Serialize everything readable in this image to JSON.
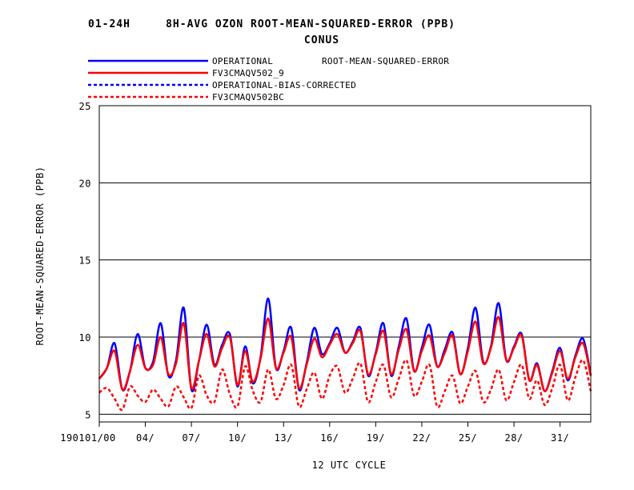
{
  "chart_data": {
    "type": "line",
    "title": "01-24H     8H-AVG OZON ROOT-MEAN-SQUARED-ERROR (PPB)",
    "subtitle": "CONUS",
    "legend_note": "ROOT-MEAN-SQUARED-ERROR",
    "xlabel": "12 UTC CYCLE",
    "ylabel": "ROOT-MEAN-SQUARED-ERROR (PPB)",
    "ylim": [
      4.5,
      25
    ],
    "yticks": [
      5,
      10,
      15,
      20,
      25
    ],
    "ytick_labels": [
      "5",
      "10",
      "15",
      "20",
      "25"
    ],
    "grid": "horizontal",
    "legend_position": "top-left",
    "xtick_labels": [
      "190101/00",
      "04/",
      "07/",
      "10/",
      "13/",
      "16/",
      "19/",
      "22/",
      "25/",
      "28/",
      "31/"
    ],
    "x_note": "x in days from 190101/00 (data roughly every 6 hours)",
    "x_start": 0,
    "x_end": 32,
    "series": [
      {
        "name": "OPERATIONAL",
        "color": "#0000ff",
        "style": "solid",
        "points": [
          [
            0.0,
            7.3
          ],
          [
            0.5,
            8.0
          ],
          [
            1.0,
            9.6
          ],
          [
            1.5,
            6.6
          ],
          [
            2.0,
            7.8
          ],
          [
            2.5,
            10.2
          ],
          [
            3.0,
            8.0
          ],
          [
            3.5,
            8.4
          ],
          [
            4.0,
            10.9
          ],
          [
            4.5,
            7.5
          ],
          [
            5.0,
            8.5
          ],
          [
            5.5,
            11.9
          ],
          [
            6.0,
            6.6
          ],
          [
            6.5,
            8.5
          ],
          [
            7.0,
            10.8
          ],
          [
            7.5,
            8.2
          ],
          [
            8.0,
            9.5
          ],
          [
            8.5,
            10.2
          ],
          [
            9.0,
            6.8
          ],
          [
            9.5,
            9.4
          ],
          [
            10.0,
            7.0
          ],
          [
            10.5,
            8.7
          ],
          [
            11.0,
            12.5
          ],
          [
            11.5,
            8.0
          ],
          [
            12.0,
            9.1
          ],
          [
            12.5,
            10.6
          ],
          [
            13.0,
            6.6
          ],
          [
            13.5,
            8.3
          ],
          [
            14.0,
            10.6
          ],
          [
            14.5,
            8.9
          ],
          [
            15.0,
            9.6
          ],
          [
            15.5,
            10.6
          ],
          [
            16.0,
            9.0
          ],
          [
            16.5,
            9.7
          ],
          [
            17.0,
            10.6
          ],
          [
            17.5,
            7.5
          ],
          [
            18.0,
            9.0
          ],
          [
            18.5,
            10.9
          ],
          [
            19.0,
            7.5
          ],
          [
            19.5,
            9.4
          ],
          [
            20.0,
            11.2
          ],
          [
            20.5,
            7.8
          ],
          [
            21.0,
            9.3
          ],
          [
            21.5,
            10.8
          ],
          [
            22.0,
            8.1
          ],
          [
            22.5,
            9.2
          ],
          [
            23.0,
            10.3
          ],
          [
            23.5,
            7.6
          ],
          [
            24.0,
            9.3
          ],
          [
            24.5,
            11.9
          ],
          [
            25.0,
            8.4
          ],
          [
            25.5,
            9.4
          ],
          [
            26.0,
            12.2
          ],
          [
            26.5,
            8.5
          ],
          [
            27.0,
            9.4
          ],
          [
            27.5,
            10.2
          ],
          [
            28.0,
            7.2
          ],
          [
            28.5,
            8.3
          ],
          [
            29.0,
            6.5
          ],
          [
            29.5,
            7.8
          ],
          [
            30.0,
            9.3
          ],
          [
            30.5,
            7.2
          ],
          [
            31.0,
            8.8
          ],
          [
            31.5,
            9.9
          ],
          [
            32.0,
            7.5
          ]
        ]
      },
      {
        "name": "FV3CMAQV502_9",
        "color": "#ff0000",
        "style": "solid",
        "points": [
          [
            0.0,
            7.3
          ],
          [
            0.5,
            8.0
          ],
          [
            1.0,
            9.1
          ],
          [
            1.5,
            6.6
          ],
          [
            2.0,
            7.8
          ],
          [
            2.5,
            9.5
          ],
          [
            3.0,
            8.0
          ],
          [
            3.5,
            8.2
          ],
          [
            4.0,
            10.0
          ],
          [
            4.5,
            7.6
          ],
          [
            5.0,
            8.3
          ],
          [
            5.5,
            10.9
          ],
          [
            6.0,
            6.7
          ],
          [
            6.5,
            8.5
          ],
          [
            7.0,
            10.2
          ],
          [
            7.5,
            8.1
          ],
          [
            8.0,
            9.3
          ],
          [
            8.5,
            10.0
          ],
          [
            9.0,
            6.9
          ],
          [
            9.5,
            9.1
          ],
          [
            10.0,
            7.1
          ],
          [
            10.5,
            8.6
          ],
          [
            11.0,
            11.2
          ],
          [
            11.5,
            8.0
          ],
          [
            12.0,
            9.0
          ],
          [
            12.5,
            10.0
          ],
          [
            13.0,
            6.7
          ],
          [
            13.5,
            8.2
          ],
          [
            14.0,
            9.9
          ],
          [
            14.5,
            8.7
          ],
          [
            15.0,
            9.5
          ],
          [
            15.5,
            10.2
          ],
          [
            16.0,
            9.0
          ],
          [
            16.5,
            9.6
          ],
          [
            17.0,
            10.4
          ],
          [
            17.5,
            7.6
          ],
          [
            18.0,
            8.9
          ],
          [
            18.5,
            10.4
          ],
          [
            19.0,
            7.6
          ],
          [
            19.5,
            9.2
          ],
          [
            20.0,
            10.5
          ],
          [
            20.5,
            7.8
          ],
          [
            21.0,
            9.1
          ],
          [
            21.5,
            10.1
          ],
          [
            22.0,
            8.1
          ],
          [
            22.5,
            9.0
          ],
          [
            23.0,
            10.1
          ],
          [
            23.5,
            7.6
          ],
          [
            24.0,
            9.1
          ],
          [
            24.5,
            11.0
          ],
          [
            25.0,
            8.3
          ],
          [
            25.5,
            9.3
          ],
          [
            26.0,
            11.3
          ],
          [
            26.5,
            8.5
          ],
          [
            27.0,
            9.3
          ],
          [
            27.5,
            10.1
          ],
          [
            28.0,
            7.2
          ],
          [
            28.5,
            8.2
          ],
          [
            29.0,
            6.5
          ],
          [
            29.5,
            7.7
          ],
          [
            30.0,
            9.1
          ],
          [
            30.5,
            7.3
          ],
          [
            31.0,
            8.7
          ],
          [
            31.5,
            9.6
          ],
          [
            32.0,
            7.5
          ]
        ]
      },
      {
        "name": "OPERATIONAL-BIAS-CORRECTED",
        "color": "#0000ff",
        "style": "dashed",
        "points": []
      },
      {
        "name": "FV3CMAQV502BC",
        "color": "#ff0000",
        "style": "dashed",
        "points": [
          [
            0.0,
            6.4
          ],
          [
            0.5,
            6.7
          ],
          [
            1.0,
            6.0
          ],
          [
            1.5,
            5.3
          ],
          [
            2.0,
            6.8
          ],
          [
            2.5,
            6.2
          ],
          [
            3.0,
            5.8
          ],
          [
            3.5,
            6.6
          ],
          [
            4.0,
            6.0
          ],
          [
            4.5,
            5.5
          ],
          [
            5.0,
            6.8
          ],
          [
            5.5,
            6.1
          ],
          [
            6.0,
            5.4
          ],
          [
            6.5,
            7.5
          ],
          [
            7.0,
            6.2
          ],
          [
            7.5,
            5.8
          ],
          [
            8.0,
            7.9
          ],
          [
            8.5,
            6.3
          ],
          [
            9.0,
            5.5
          ],
          [
            9.5,
            8.1
          ],
          [
            10.0,
            6.5
          ],
          [
            10.5,
            5.8
          ],
          [
            11.0,
            7.9
          ],
          [
            11.5,
            6.0
          ],
          [
            12.0,
            6.9
          ],
          [
            12.5,
            8.2
          ],
          [
            13.0,
            5.5
          ],
          [
            13.5,
            6.6
          ],
          [
            14.0,
            7.7
          ],
          [
            14.5,
            6.0
          ],
          [
            15.0,
            7.5
          ],
          [
            15.5,
            8.1
          ],
          [
            16.0,
            6.4
          ],
          [
            16.5,
            7.3
          ],
          [
            17.0,
            8.3
          ],
          [
            17.5,
            5.8
          ],
          [
            18.0,
            7.1
          ],
          [
            18.5,
            8.2
          ],
          [
            19.0,
            6.1
          ],
          [
            19.5,
            7.3
          ],
          [
            20.0,
            8.5
          ],
          [
            20.5,
            6.2
          ],
          [
            21.0,
            7.1
          ],
          [
            21.5,
            8.2
          ],
          [
            22.0,
            5.5
          ],
          [
            22.5,
            6.5
          ],
          [
            23.0,
            7.5
          ],
          [
            23.5,
            5.7
          ],
          [
            24.0,
            6.8
          ],
          [
            24.5,
            7.8
          ],
          [
            25.0,
            5.8
          ],
          [
            25.5,
            6.6
          ],
          [
            26.0,
            7.9
          ],
          [
            26.5,
            5.9
          ],
          [
            27.0,
            7.1
          ],
          [
            27.5,
            8.2
          ],
          [
            28.0,
            6.0
          ],
          [
            28.5,
            7.2
          ],
          [
            29.0,
            5.6
          ],
          [
            29.5,
            6.7
          ],
          [
            30.0,
            8.2
          ],
          [
            30.5,
            5.9
          ],
          [
            31.0,
            7.4
          ],
          [
            31.5,
            8.5
          ],
          [
            32.0,
            6.5
          ]
        ]
      }
    ]
  }
}
